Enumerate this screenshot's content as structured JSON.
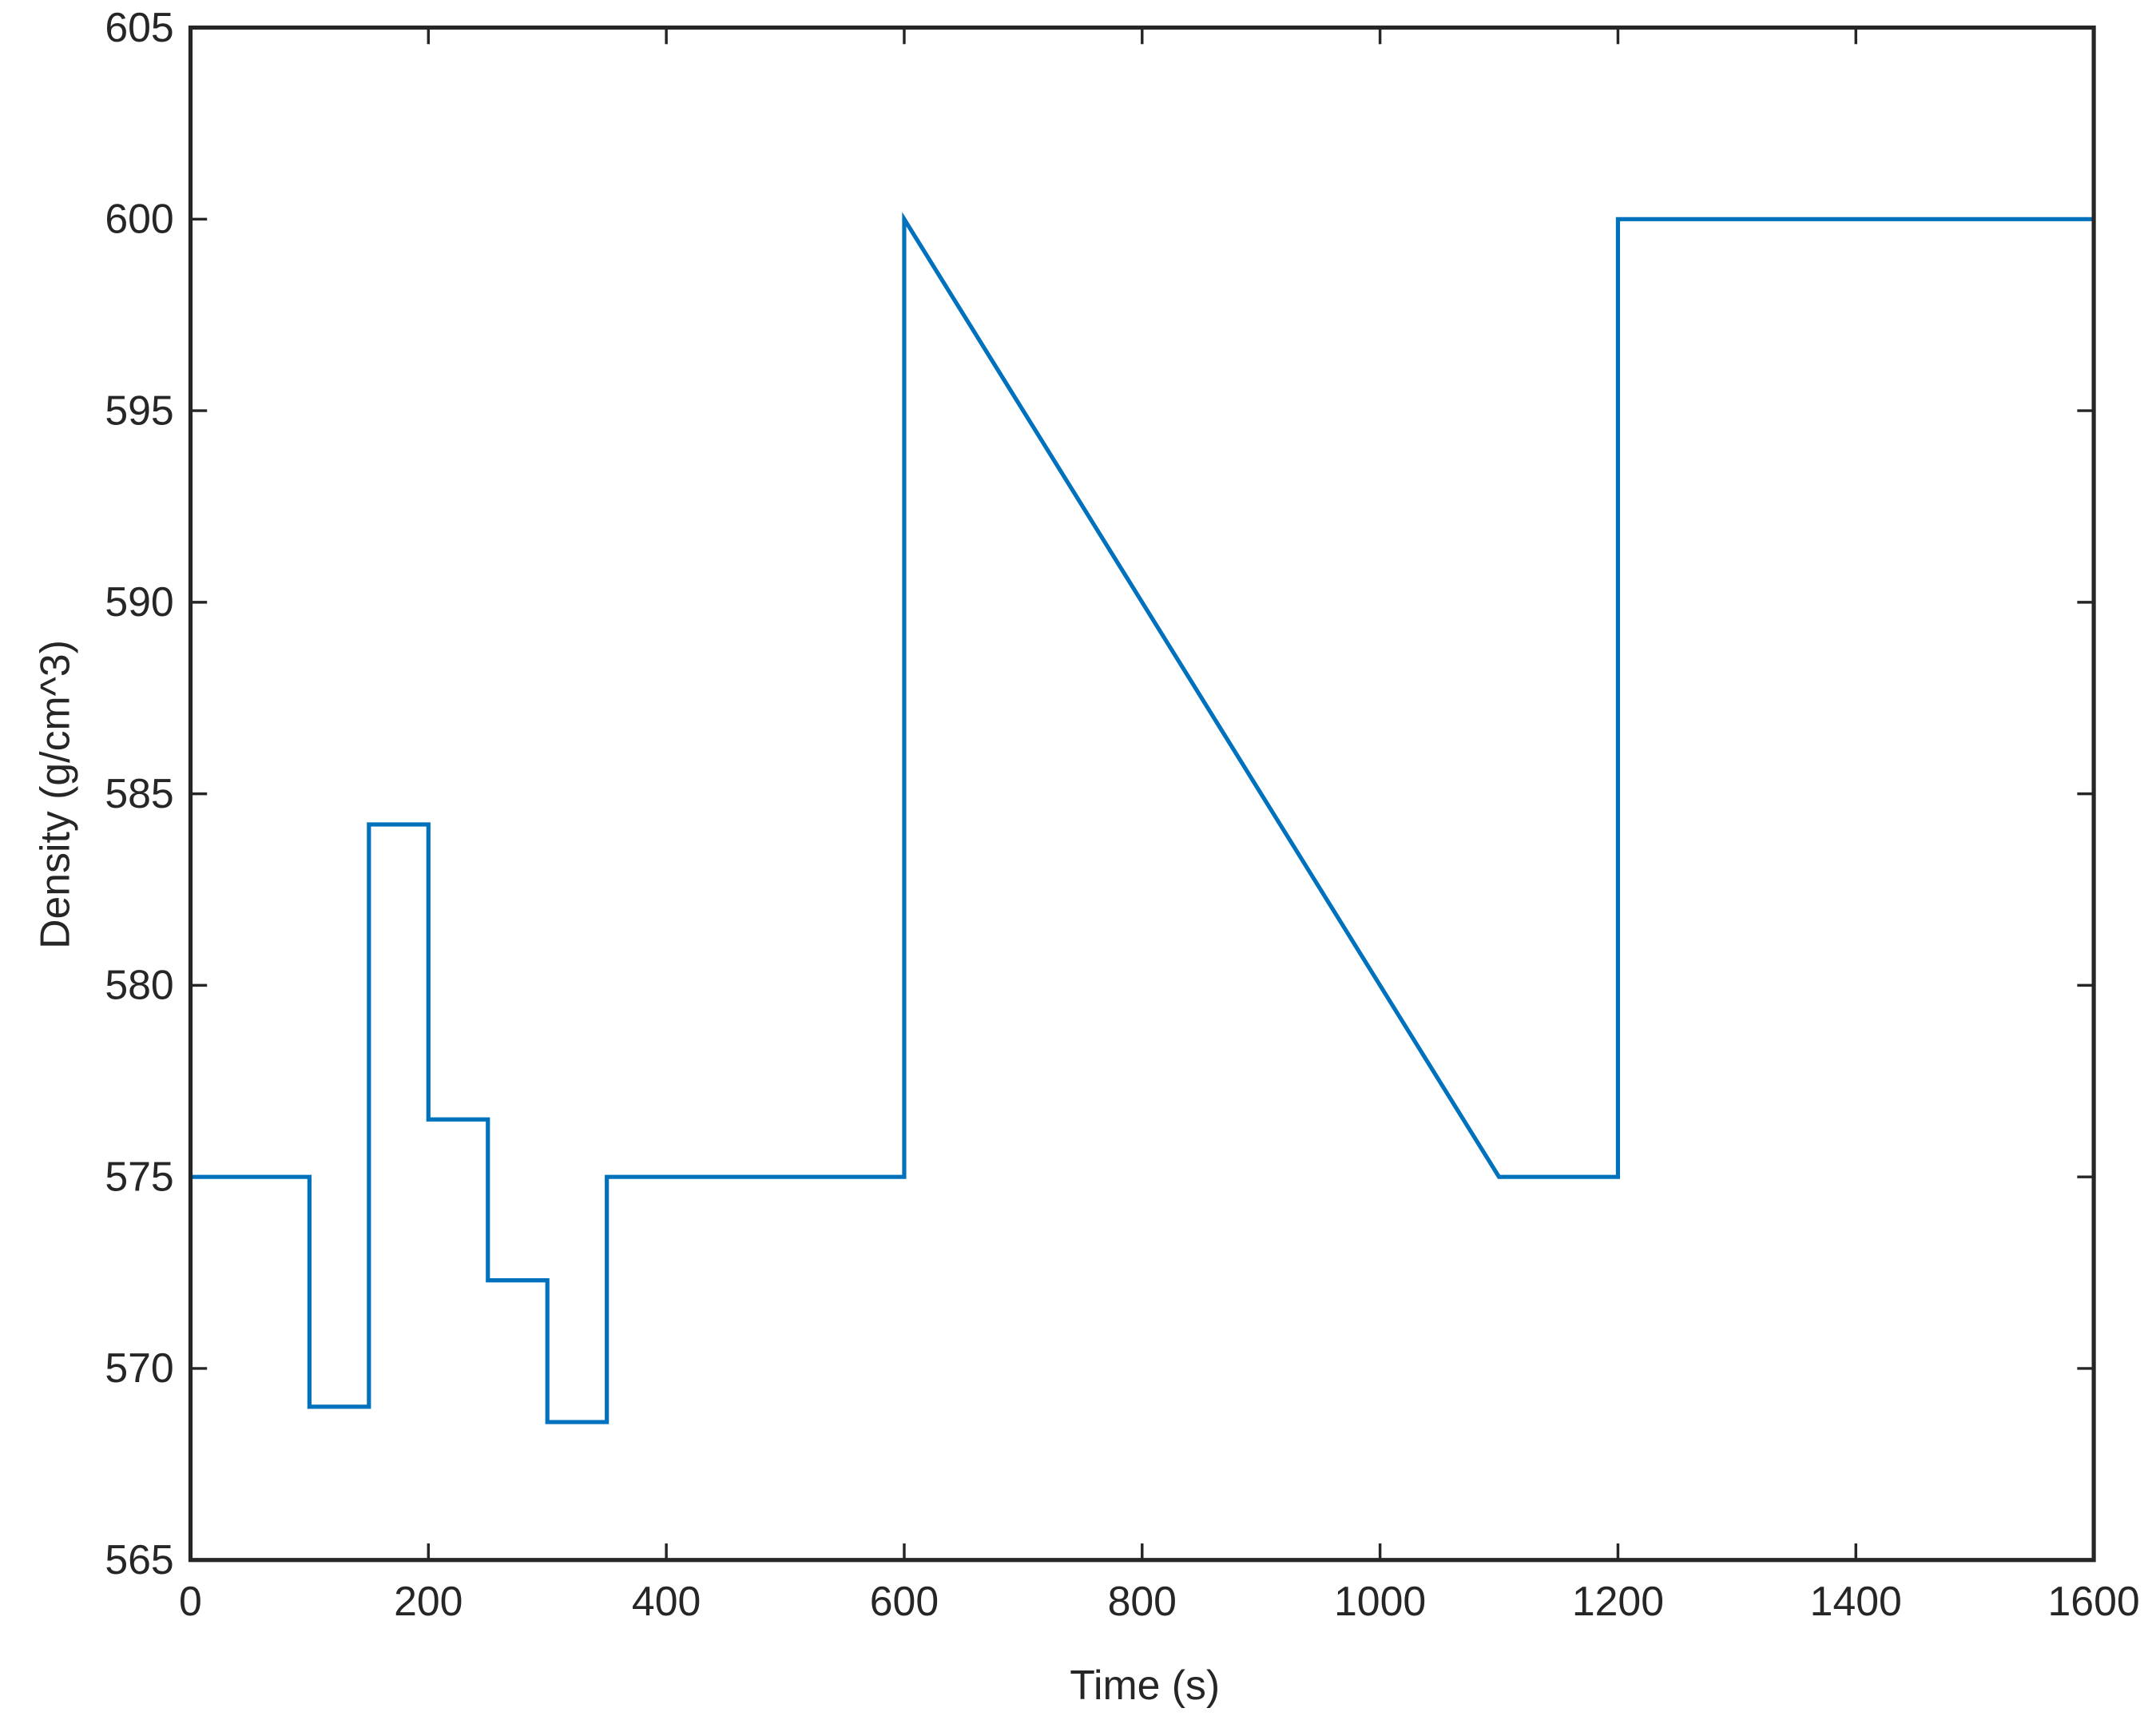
{
  "chart_data": {
    "type": "line",
    "xlabel": "Time (s)",
    "ylabel": "Density (g/cm^3)",
    "x": [
      0,
      100,
      100,
      150,
      150,
      200,
      200,
      250,
      250,
      300,
      300,
      350,
      350,
      600,
      600,
      1100,
      1200,
      1200,
      1600
    ],
    "series": [
      {
        "name": "Density",
        "color": "#0072bd",
        "values": [
          575,
          575,
          569,
          569,
          584.2,
          584.2,
          576.5,
          576.5,
          572.3,
          572.3,
          568.6,
          568.6,
          575,
          575,
          600,
          575,
          575,
          600,
          600
        ]
      }
    ],
    "xlim": [
      0,
      1600
    ],
    "xticks": [
      0,
      200,
      400,
      600,
      800,
      1000,
      1200,
      1400,
      1600
    ],
    "ylim": [
      565,
      605
    ],
    "yticks": [
      565,
      570,
      575,
      580,
      585,
      590,
      595,
      600,
      605
    ],
    "grid": false
  }
}
